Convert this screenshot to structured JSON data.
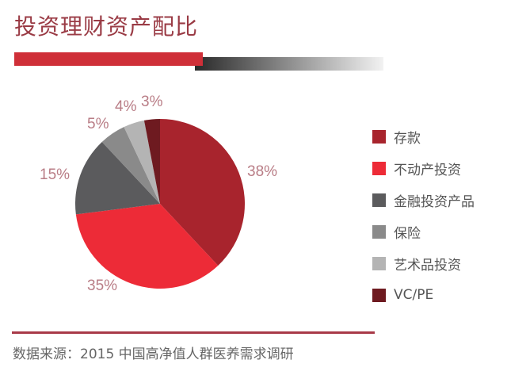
{
  "title": "投资理财资产配比",
  "source": "数据来源：2015 中国高净值人群医养需求调研",
  "chart_data": {
    "type": "pie",
    "title": "投资理财资产配比",
    "categories": [
      "存款",
      "不动产投资",
      "金融投资产品",
      "保险",
      "艺术品投资",
      "VC/PE"
    ],
    "values": [
      38,
      35,
      15,
      5,
      4,
      3
    ],
    "labels": [
      "38%",
      "35%",
      "15%",
      "5%",
      "4%",
      "3%"
    ],
    "colors": [
      "#a8242d",
      "#ed2b37",
      "#5b5b5d",
      "#8a8a8a",
      "#b4b4b4",
      "#6e1a20"
    ],
    "legend_position": "right",
    "start_angle": "12 o'clock, clockwise"
  },
  "legend": [
    {
      "label": "存款",
      "color": "#a8242d"
    },
    {
      "label": "不动产投资",
      "color": "#ed2b37"
    },
    {
      "label": "金融投资产品",
      "color": "#5b5b5d"
    },
    {
      "label": "保险",
      "color": "#8a8a8a"
    },
    {
      "label": "艺术品投资",
      "color": "#b4b4b4"
    },
    {
      "label": "VC/PE",
      "color": "#6e1a20"
    }
  ]
}
